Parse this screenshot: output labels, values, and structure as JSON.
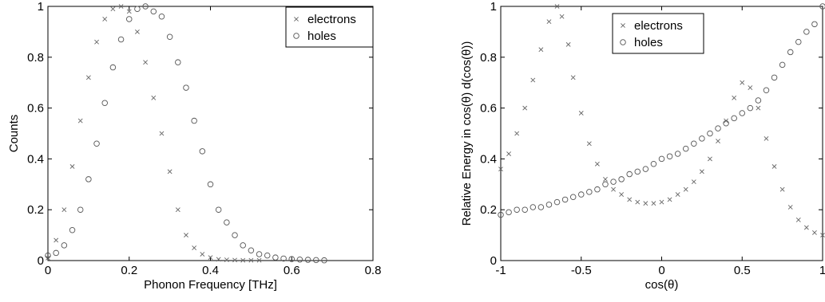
{
  "chart_data": [
    {
      "type": "scatter",
      "title": "",
      "xlabel": "Phonon Frequency [THz]",
      "ylabel": "Counts",
      "xlim": [
        0,
        0.8
      ],
      "ylim": [
        0,
        1
      ],
      "xticks": [
        "0",
        "0.2",
        "0.4",
        "0.6",
        "0.8"
      ],
      "yticks": [
        "0",
        "0.2",
        "0.4",
        "0.6",
        "0.8",
        "1"
      ],
      "legend": "top-right",
      "grid": false,
      "series": [
        {
          "name": "electrons",
          "marker": "x",
          "x": [
            0.0,
            0.02,
            0.04,
            0.06,
            0.08,
            0.1,
            0.12,
            0.14,
            0.16,
            0.18,
            0.2,
            0.22,
            0.24,
            0.26,
            0.28,
            0.3,
            0.32,
            0.34,
            0.36,
            0.38,
            0.4,
            0.42,
            0.44,
            0.46,
            0.48,
            0.5,
            0.52
          ],
          "y": [
            0.01,
            0.08,
            0.2,
            0.37,
            0.55,
            0.72,
            0.86,
            0.95,
            0.99,
            1.0,
            0.98,
            0.9,
            0.78,
            0.64,
            0.5,
            0.35,
            0.2,
            0.1,
            0.05,
            0.025,
            0.012,
            0.005,
            0.003,
            0.002,
            0.001,
            0.001,
            0.001
          ]
        },
        {
          "name": "holes",
          "marker": "o",
          "x": [
            0.0,
            0.02,
            0.04,
            0.06,
            0.08,
            0.1,
            0.12,
            0.14,
            0.16,
            0.18,
            0.2,
            0.22,
            0.24,
            0.26,
            0.28,
            0.3,
            0.32,
            0.34,
            0.36,
            0.38,
            0.4,
            0.42,
            0.44,
            0.46,
            0.48,
            0.5,
            0.52,
            0.54,
            0.56,
            0.58,
            0.6,
            0.62,
            0.64,
            0.66,
            0.68
          ],
          "y": [
            0.02,
            0.03,
            0.06,
            0.12,
            0.2,
            0.32,
            0.46,
            0.62,
            0.76,
            0.87,
            0.95,
            0.99,
            1.0,
            0.98,
            0.96,
            0.88,
            0.78,
            0.68,
            0.55,
            0.43,
            0.3,
            0.2,
            0.15,
            0.1,
            0.06,
            0.04,
            0.025,
            0.02,
            0.012,
            0.008,
            0.006,
            0.004,
            0.003,
            0.002,
            0.001
          ]
        }
      ]
    },
    {
      "type": "scatter",
      "title": "",
      "xlabel": "cos(θ)",
      "ylabel": "Relative Energy in cos(θ) d(cos(θ))",
      "xlim": [
        -1,
        1
      ],
      "ylim": [
        0,
        1
      ],
      "xticks": [
        "-1",
        "-0.5",
        "0",
        "0.5",
        "1"
      ],
      "yticks": [
        "0",
        "0.2",
        "0.4",
        "0.6",
        "0.8",
        "1"
      ],
      "legend": "top-center",
      "grid": false,
      "series": [
        {
          "name": "electrons",
          "marker": "x",
          "x": [
            -1.0,
            -0.95,
            -0.9,
            -0.85,
            -0.8,
            -0.75,
            -0.7,
            -0.65,
            -0.62,
            -0.58,
            -0.55,
            -0.5,
            -0.45,
            -0.4,
            -0.35,
            -0.3,
            -0.25,
            -0.2,
            -0.15,
            -0.1,
            -0.05,
            0.0,
            0.05,
            0.1,
            0.15,
            0.2,
            0.25,
            0.3,
            0.35,
            0.4,
            0.45,
            0.5,
            0.55,
            0.6,
            0.65,
            0.7,
            0.75,
            0.8,
            0.85,
            0.9,
            0.95,
            1.0
          ],
          "y": [
            0.36,
            0.42,
            0.5,
            0.6,
            0.71,
            0.83,
            0.94,
            1.0,
            0.96,
            0.85,
            0.72,
            0.58,
            0.46,
            0.38,
            0.32,
            0.28,
            0.26,
            0.24,
            0.23,
            0.225,
            0.225,
            0.23,
            0.24,
            0.26,
            0.28,
            0.31,
            0.35,
            0.4,
            0.47,
            0.55,
            0.64,
            0.7,
            0.68,
            0.6,
            0.48,
            0.37,
            0.28,
            0.21,
            0.16,
            0.13,
            0.11,
            0.1
          ]
        },
        {
          "name": "holes",
          "marker": "o",
          "x": [
            -1.0,
            -0.95,
            -0.9,
            -0.85,
            -0.8,
            -0.75,
            -0.7,
            -0.65,
            -0.6,
            -0.55,
            -0.5,
            -0.45,
            -0.4,
            -0.35,
            -0.3,
            -0.25,
            -0.2,
            -0.15,
            -0.1,
            -0.05,
            0.0,
            0.05,
            0.1,
            0.15,
            0.2,
            0.25,
            0.3,
            0.35,
            0.4,
            0.45,
            0.5,
            0.55,
            0.6,
            0.65,
            0.7,
            0.75,
            0.8,
            0.85,
            0.9,
            0.95,
            1.0
          ],
          "y": [
            0.18,
            0.19,
            0.2,
            0.2,
            0.21,
            0.21,
            0.22,
            0.23,
            0.24,
            0.25,
            0.26,
            0.27,
            0.28,
            0.3,
            0.31,
            0.32,
            0.34,
            0.35,
            0.36,
            0.38,
            0.4,
            0.41,
            0.42,
            0.44,
            0.46,
            0.48,
            0.5,
            0.52,
            0.54,
            0.56,
            0.58,
            0.6,
            0.63,
            0.67,
            0.72,
            0.77,
            0.82,
            0.86,
            0.9,
            0.93,
            1.0
          ]
        }
      ]
    }
  ]
}
